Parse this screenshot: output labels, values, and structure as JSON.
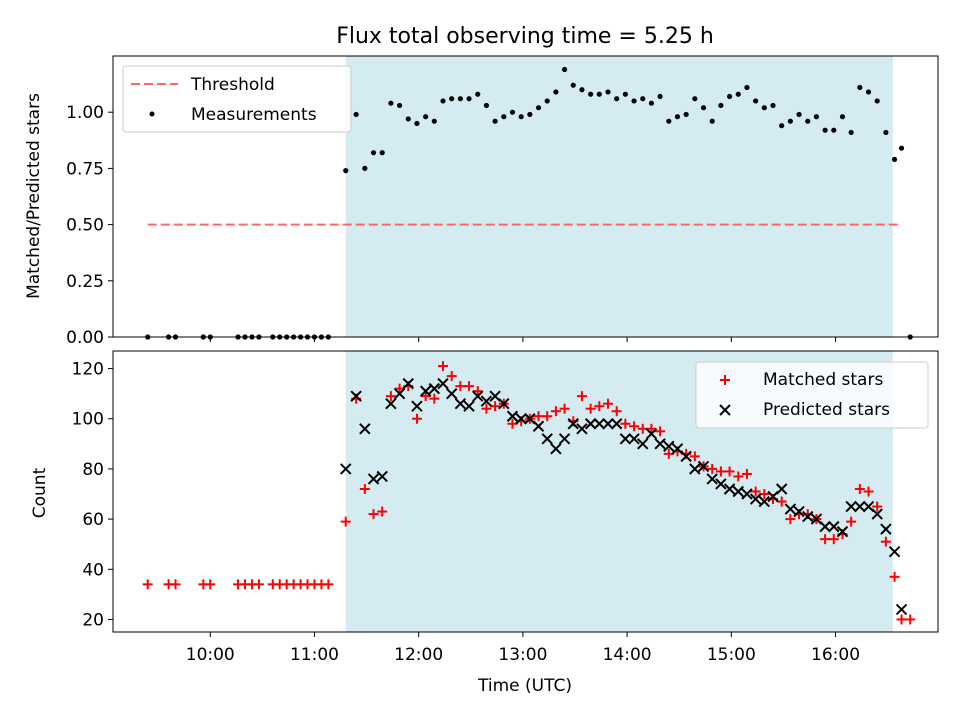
{
  "chart_data": [
    {
      "type": "scatter",
      "title": "Flux total observing time = 5.25 h",
      "xlabel": "",
      "ylabel": "Matched/Predicted stars",
      "xlim": [
        "09:04",
        "16:59"
      ],
      "ylim": [
        0,
        1.25
      ],
      "yticks": [
        "0.00",
        "0.25",
        "0.50",
        "0.75",
        "1.00"
      ],
      "grid": false,
      "legend_position": "top-left",
      "shaded_interval": {
        "start": "11:18",
        "end": "16:33",
        "color": "#add8e6"
      },
      "threshold": {
        "name": "Threshold",
        "value": 0.5,
        "x_start": "09:24",
        "x_end": "16:38",
        "color": "#ff6666",
        "style": "dashed"
      },
      "series": [
        {
          "name": "Measurements",
          "marker": "dot",
          "color": "#000000",
          "points": [
            [
              "09:24",
              0.0
            ],
            [
              "09:36",
              0.0
            ],
            [
              "09:40",
              0.0
            ],
            [
              "09:56",
              0.0
            ],
            [
              "10:00",
              0.0
            ],
            [
              "10:16",
              0.0
            ],
            [
              "10:20",
              0.0
            ],
            [
              "10:24",
              0.0
            ],
            [
              "10:28",
              0.0
            ],
            [
              "10:36",
              0.0
            ],
            [
              "10:40",
              0.0
            ],
            [
              "10:44",
              0.0
            ],
            [
              "10:48",
              0.0
            ],
            [
              "10:52",
              0.0
            ],
            [
              "10:56",
              0.0
            ],
            [
              "11:00",
              0.0
            ],
            [
              "11:04",
              0.0
            ],
            [
              "11:08",
              0.0
            ],
            [
              "11:18",
              0.74
            ],
            [
              "11:24",
              0.99
            ],
            [
              "11:29",
              0.75
            ],
            [
              "11:34",
              0.82
            ],
            [
              "11:39",
              0.82
            ],
            [
              "11:44",
              1.04
            ],
            [
              "11:49",
              1.03
            ],
            [
              "11:54",
              0.97
            ],
            [
              "11:59",
              0.95
            ],
            [
              "12:04",
              0.98
            ],
            [
              "12:09",
              0.96
            ],
            [
              "12:14",
              1.05
            ],
            [
              "12:19",
              1.06
            ],
            [
              "12:24",
              1.06
            ],
            [
              "12:29",
              1.06
            ],
            [
              "12:34",
              1.08
            ],
            [
              "12:39",
              1.03
            ],
            [
              "12:44",
              0.96
            ],
            [
              "12:49",
              0.98
            ],
            [
              "12:54",
              1.0
            ],
            [
              "12:59",
              0.98
            ],
            [
              "13:04",
              0.99
            ],
            [
              "13:09",
              1.02
            ],
            [
              "13:14",
              1.05
            ],
            [
              "13:19",
              1.09
            ],
            [
              "13:24",
              1.19
            ],
            [
              "13:29",
              1.12
            ],
            [
              "13:34",
              1.1
            ],
            [
              "13:39",
              1.08
            ],
            [
              "13:44",
              1.08
            ],
            [
              "13:49",
              1.09
            ],
            [
              "13:54",
              1.06
            ],
            [
              "13:59",
              1.08
            ],
            [
              "14:04",
              1.05
            ],
            [
              "14:09",
              1.06
            ],
            [
              "14:14",
              1.04
            ],
            [
              "14:19",
              1.07
            ],
            [
              "14:24",
              0.96
            ],
            [
              "14:29",
              0.98
            ],
            [
              "14:34",
              0.99
            ],
            [
              "14:39",
              1.06
            ],
            [
              "14:44",
              1.02
            ],
            [
              "14:49",
              0.96
            ],
            [
              "14:54",
              1.03
            ],
            [
              "14:59",
              1.07
            ],
            [
              "15:04",
              1.08
            ],
            [
              "15:09",
              1.11
            ],
            [
              "15:14",
              1.05
            ],
            [
              "15:19",
              1.02
            ],
            [
              "15:24",
              1.03
            ],
            [
              "15:29",
              0.94
            ],
            [
              "15:34",
              0.96
            ],
            [
              "15:39",
              0.99
            ],
            [
              "15:44",
              0.96
            ],
            [
              "15:49",
              0.98
            ],
            [
              "15:54",
              0.92
            ],
            [
              "15:59",
              0.92
            ],
            [
              "16:04",
              0.98
            ],
            [
              "16:09",
              0.91
            ],
            [
              "16:14",
              1.11
            ],
            [
              "16:19",
              1.09
            ],
            [
              "16:24",
              1.05
            ],
            [
              "16:29",
              0.91
            ],
            [
              "16:34",
              0.79
            ],
            [
              "16:38",
              0.84
            ],
            [
              "16:43",
              0.0
            ]
          ]
        }
      ]
    },
    {
      "type": "scatter",
      "title": "",
      "xlabel": "Time (UTC)",
      "ylabel": "Count",
      "xlim": [
        "09:04",
        "16:59"
      ],
      "ylim": [
        15,
        127
      ],
      "yticks": [
        "20",
        "40",
        "60",
        "80",
        "100",
        "120"
      ],
      "xticks": [
        "10:00",
        "11:00",
        "12:00",
        "13:00",
        "14:00",
        "15:00",
        "16:00"
      ],
      "grid": false,
      "legend_position": "top-right",
      "shaded_interval": {
        "start": "11:18",
        "end": "16:33",
        "color": "#add8e6"
      },
      "series": [
        {
          "name": "Matched stars",
          "marker": "plus",
          "color": "#ff0000",
          "points": [
            [
              "09:24",
              34
            ],
            [
              "09:36",
              34
            ],
            [
              "09:40",
              34
            ],
            [
              "09:56",
              34
            ],
            [
              "10:00",
              34
            ],
            [
              "10:16",
              34
            ],
            [
              "10:20",
              34
            ],
            [
              "10:24",
              34
            ],
            [
              "10:28",
              34
            ],
            [
              "10:36",
              34
            ],
            [
              "10:40",
              34
            ],
            [
              "10:44",
              34
            ],
            [
              "10:48",
              34
            ],
            [
              "10:52",
              34
            ],
            [
              "10:56",
              34
            ],
            [
              "11:00",
              34
            ],
            [
              "11:04",
              34
            ],
            [
              "11:08",
              34
            ],
            [
              "11:18",
              59
            ],
            [
              "11:24",
              108
            ],
            [
              "11:29",
              72
            ],
            [
              "11:34",
              62
            ],
            [
              "11:39",
              63
            ],
            [
              "11:44",
              109
            ],
            [
              "11:49",
              112
            ],
            [
              "11:54",
              113
            ],
            [
              "11:59",
              100
            ],
            [
              "12:04",
              109
            ],
            [
              "12:09",
              108
            ],
            [
              "12:14",
              121
            ],
            [
              "12:19",
              117
            ],
            [
              "12:24",
              113
            ],
            [
              "12:29",
              113
            ],
            [
              "12:34",
              111
            ],
            [
              "12:39",
              104
            ],
            [
              "12:44",
              105
            ],
            [
              "12:49",
              106
            ],
            [
              "12:54",
              98
            ],
            [
              "12:59",
              99
            ],
            [
              "13:04",
              100
            ],
            [
              "13:09",
              101
            ],
            [
              "13:14",
              101
            ],
            [
              "13:19",
              103
            ],
            [
              "13:24",
              104
            ],
            [
              "13:29",
              99
            ],
            [
              "13:34",
              109
            ],
            [
              "13:39",
              104
            ],
            [
              "13:44",
              105
            ],
            [
              "13:49",
              106
            ],
            [
              "13:54",
              103
            ],
            [
              "13:59",
              98
            ],
            [
              "14:04",
              97
            ],
            [
              "14:09",
              96
            ],
            [
              "14:14",
              96
            ],
            [
              "14:19",
              95
            ],
            [
              "14:24",
              86
            ],
            [
              "14:29",
              87
            ],
            [
              "14:34",
              86
            ],
            [
              "14:39",
              85
            ],
            [
              "14:44",
              81
            ],
            [
              "14:49",
              80
            ],
            [
              "14:54",
              79
            ],
            [
              "14:59",
              79
            ],
            [
              "15:04",
              77
            ],
            [
              "15:09",
              78
            ],
            [
              "15:14",
              71
            ],
            [
              "15:19",
              70
            ],
            [
              "15:24",
              68
            ],
            [
              "15:29",
              67
            ],
            [
              "15:34",
              60
            ],
            [
              "15:39",
              62
            ],
            [
              "15:44",
              62
            ],
            [
              "15:49",
              60
            ],
            [
              "15:54",
              52
            ],
            [
              "15:59",
              52
            ],
            [
              "16:04",
              54
            ],
            [
              "16:09",
              59
            ],
            [
              "16:14",
              72
            ],
            [
              "16:19",
              71
            ],
            [
              "16:24",
              65
            ],
            [
              "16:29",
              51
            ],
            [
              "16:34",
              37
            ],
            [
              "16:38",
              20
            ],
            [
              "16:43",
              20
            ]
          ]
        },
        {
          "name": "Predicted stars",
          "marker": "x",
          "color": "#000000",
          "points": [
            [
              "11:18",
              80
            ],
            [
              "11:24",
              109
            ],
            [
              "11:29",
              96
            ],
            [
              "11:34",
              76
            ],
            [
              "11:39",
              77
            ],
            [
              "11:44",
              106
            ],
            [
              "11:49",
              110
            ],
            [
              "11:54",
              114
            ],
            [
              "11:59",
              105
            ],
            [
              "12:04",
              111
            ],
            [
              "12:09",
              112
            ],
            [
              "12:14",
              114
            ],
            [
              "12:19",
              110
            ],
            [
              "12:24",
              106
            ],
            [
              "12:29",
              105
            ],
            [
              "12:34",
              109
            ],
            [
              "12:39",
              107
            ],
            [
              "12:44",
              109
            ],
            [
              "12:49",
              106
            ],
            [
              "12:54",
              101
            ],
            [
              "12:59",
              100
            ],
            [
              "13:04",
              100
            ],
            [
              "13:09",
              97
            ],
            [
              "13:14",
              92
            ],
            [
              "13:19",
              88
            ],
            [
              "13:24",
              92
            ],
            [
              "13:29",
              98
            ],
            [
              "13:34",
              96
            ],
            [
              "13:39",
              98
            ],
            [
              "13:44",
              98
            ],
            [
              "13:49",
              98
            ],
            [
              "13:54",
              98
            ],
            [
              "13:59",
              92
            ],
            [
              "14:04",
              92
            ],
            [
              "14:09",
              90
            ],
            [
              "14:14",
              94
            ],
            [
              "14:19",
              90
            ],
            [
              "14:24",
              89
            ],
            [
              "14:29",
              88
            ],
            [
              "14:34",
              85
            ],
            [
              "14:39",
              80
            ],
            [
              "14:44",
              81
            ],
            [
              "14:49",
              76
            ],
            [
              "14:54",
              74
            ],
            [
              "14:59",
              72
            ],
            [
              "15:04",
              71
            ],
            [
              "15:09",
              70
            ],
            [
              "15:14",
              68
            ],
            [
              "15:19",
              67
            ],
            [
              "15:24",
              69
            ],
            [
              "15:29",
              72
            ],
            [
              "15:34",
              64
            ],
            [
              "15:39",
              63
            ],
            [
              "15:44",
              61
            ],
            [
              "15:49",
              60
            ],
            [
              "15:54",
              57
            ],
            [
              "15:59",
              57
            ],
            [
              "16:04",
              55
            ],
            [
              "16:09",
              65
            ],
            [
              "16:14",
              65
            ],
            [
              "16:19",
              65
            ],
            [
              "16:24",
              62
            ],
            [
              "16:29",
              56
            ],
            [
              "16:34",
              47
            ],
            [
              "16:38",
              24
            ]
          ]
        }
      ]
    }
  ]
}
